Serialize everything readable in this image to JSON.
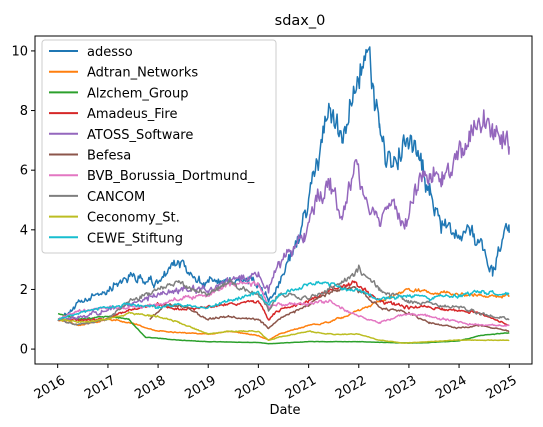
{
  "chart_data": {
    "type": "line",
    "title": "sdax_0",
    "xlabel": "Date",
    "ylabel": "",
    "xlim": [
      "2015-07-20",
      "2025-06-15"
    ],
    "ylim": [
      -0.5,
      10.5
    ],
    "x_ticks": [
      "2016",
      "2017",
      "2018",
      "2019",
      "2020",
      "2021",
      "2022",
      "2023",
      "2024",
      "2025"
    ],
    "y_ticks": [
      0,
      2,
      4,
      6,
      8,
      10
    ],
    "grid": false,
    "legend_position": "upper-left",
    "series": [
      {
        "name": "adesso",
        "color": "#1f77b4",
        "noise": 0.1,
        "points": [
          [
            "2016-01-04",
            1.0
          ],
          [
            "2016-06-01",
            1.5
          ],
          [
            "2017-01-01",
            2.0
          ],
          [
            "2017-06-01",
            2.5
          ],
          [
            "2017-12-01",
            2.2
          ],
          [
            "2018-06-01",
            2.9
          ],
          [
            "2018-12-01",
            2.2
          ],
          [
            "2019-06-01",
            2.3
          ],
          [
            "2019-12-01",
            2.3
          ],
          [
            "2020-03-15",
            1.6
          ],
          [
            "2020-06-01",
            2.2
          ],
          [
            "2020-11-01",
            3.8
          ],
          [
            "2021-01-01",
            5.0
          ],
          [
            "2021-06-01",
            8.0
          ],
          [
            "2021-09-01",
            7.0
          ],
          [
            "2021-12-01",
            9.0
          ],
          [
            "2022-03-01",
            10.0
          ],
          [
            "2022-06-01",
            7.5
          ],
          [
            "2022-09-01",
            6.0
          ],
          [
            "2022-12-01",
            7.0
          ],
          [
            "2023-03-01",
            6.5
          ],
          [
            "2023-06-01",
            5.2
          ],
          [
            "2023-09-01",
            4.2
          ],
          [
            "2023-12-01",
            3.8
          ],
          [
            "2024-03-01",
            4.2
          ],
          [
            "2024-06-01",
            3.5
          ],
          [
            "2024-09-01",
            2.6
          ],
          [
            "2024-12-01",
            4.0
          ],
          [
            "2024-12-31",
            3.9
          ]
        ]
      },
      {
        "name": "Adtran_Networks",
        "color": "#ff7f0e",
        "noise": 0.04,
        "points": [
          [
            "2016-01-04",
            1.0
          ],
          [
            "2016-06-01",
            0.8
          ],
          [
            "2017-01-01",
            1.0
          ],
          [
            "2017-06-01",
            0.9
          ],
          [
            "2018-01-01",
            0.6
          ],
          [
            "2018-06-01",
            0.55
          ],
          [
            "2019-01-01",
            0.5
          ],
          [
            "2019-06-01",
            0.6
          ],
          [
            "2020-01-01",
            0.45
          ],
          [
            "2020-03-15",
            0.3
          ],
          [
            "2020-06-01",
            0.5
          ],
          [
            "2021-01-01",
            0.8
          ],
          [
            "2021-06-01",
            0.9
          ],
          [
            "2022-01-01",
            1.3
          ],
          [
            "2022-06-01",
            1.6
          ],
          [
            "2023-01-01",
            2.0
          ],
          [
            "2023-06-01",
            1.9
          ],
          [
            "2024-01-01",
            1.85
          ],
          [
            "2024-06-01",
            1.8
          ],
          [
            "2024-12-31",
            1.8
          ]
        ]
      },
      {
        "name": "Alzchem_Group",
        "color": "#2ca02c",
        "noise": 0.03,
        "points": [
          [
            "2016-01-04",
            1.2
          ],
          [
            "2016-06-01",
            1.0
          ],
          [
            "2017-01-01",
            1.1
          ],
          [
            "2017-06-01",
            1.0
          ],
          [
            "2017-10-01",
            0.4
          ],
          [
            "2018-06-01",
            0.3
          ],
          [
            "2019-01-01",
            0.25
          ],
          [
            "2020-01-01",
            0.22
          ],
          [
            "2020-03-15",
            0.18
          ],
          [
            "2021-01-01",
            0.25
          ],
          [
            "2022-01-01",
            0.25
          ],
          [
            "2023-01-01",
            0.2
          ],
          [
            "2023-06-01",
            0.22
          ],
          [
            "2024-01-01",
            0.28
          ],
          [
            "2024-06-01",
            0.45
          ],
          [
            "2024-12-31",
            0.55
          ]
        ]
      },
      {
        "name": "Amadeus_Fire",
        "color": "#d62728",
        "noise": 0.05,
        "points": [
          [
            "2016-01-04",
            1.0
          ],
          [
            "2017-01-01",
            1.0
          ],
          [
            "2017-06-01",
            1.3
          ],
          [
            "2018-01-01",
            1.5
          ],
          [
            "2018-06-01",
            1.3
          ],
          [
            "2019-01-01",
            1.4
          ],
          [
            "2019-06-01",
            1.5
          ],
          [
            "2020-01-01",
            1.6
          ],
          [
            "2020-03-15",
            1.0
          ],
          [
            "2020-06-01",
            1.3
          ],
          [
            "2021-01-01",
            1.6
          ],
          [
            "2021-06-01",
            2.0
          ],
          [
            "2021-12-01",
            2.2
          ],
          [
            "2022-06-01",
            1.6
          ],
          [
            "2023-01-01",
            1.4
          ],
          [
            "2023-06-01",
            1.4
          ],
          [
            "2024-01-01",
            1.3
          ],
          [
            "2024-06-01",
            1.2
          ],
          [
            "2024-12-31",
            0.8
          ]
        ]
      },
      {
        "name": "ATOSS_Software",
        "color": "#9467bd",
        "noise": 0.09,
        "points": [
          [
            "2016-01-04",
            1.0
          ],
          [
            "2016-06-01",
            1.1
          ],
          [
            "2017-01-01",
            1.3
          ],
          [
            "2017-06-01",
            1.5
          ],
          [
            "2018-01-01",
            1.8
          ],
          [
            "2018-06-01",
            2.0
          ],
          [
            "2019-01-01",
            2.0
          ],
          [
            "2019-06-01",
            2.3
          ],
          [
            "2020-01-01",
            2.5
          ],
          [
            "2020-03-15",
            2.0
          ],
          [
            "2020-06-01",
            2.9
          ],
          [
            "2020-12-01",
            3.8
          ],
          [
            "2021-03-01",
            5.0
          ],
          [
            "2021-06-01",
            5.5
          ],
          [
            "2021-09-01",
            4.5
          ],
          [
            "2021-12-01",
            6.0
          ],
          [
            "2022-03-01",
            4.8
          ],
          [
            "2022-06-01",
            4.2
          ],
          [
            "2022-09-01",
            5.0
          ],
          [
            "2022-12-01",
            4.0
          ],
          [
            "2023-03-01",
            5.5
          ],
          [
            "2023-06-01",
            6.0
          ],
          [
            "2023-09-01",
            5.8
          ],
          [
            "2023-12-01",
            6.5
          ],
          [
            "2024-03-01",
            7.0
          ],
          [
            "2024-06-01",
            8.0
          ],
          [
            "2024-09-01",
            7.5
          ],
          [
            "2024-12-31",
            6.8
          ]
        ]
      },
      {
        "name": "Befesa",
        "color": "#8c564b",
        "noise": 0.05,
        "points": [
          [
            "2017-11-01",
            1.0
          ],
          [
            "2018-03-01",
            1.5
          ],
          [
            "2018-06-01",
            1.5
          ],
          [
            "2019-01-01",
            1.0
          ],
          [
            "2019-06-01",
            1.1
          ],
          [
            "2020-01-01",
            1.0
          ],
          [
            "2020-03-15",
            0.7
          ],
          [
            "2020-06-01",
            1.0
          ],
          [
            "2021-01-01",
            1.5
          ],
          [
            "2021-06-01",
            1.9
          ],
          [
            "2021-12-01",
            2.1
          ],
          [
            "2022-06-01",
            1.4
          ],
          [
            "2023-01-01",
            1.2
          ],
          [
            "2023-06-01",
            0.9
          ],
          [
            "2024-01-01",
            0.7
          ],
          [
            "2024-06-01",
            0.8
          ],
          [
            "2024-12-31",
            0.6
          ]
        ]
      },
      {
        "name": "BVB_Borussia_Dortmund_",
        "color": "#e377c2",
        "noise": 0.05,
        "points": [
          [
            "2016-01-04",
            1.0
          ],
          [
            "2016-06-01",
            1.3
          ],
          [
            "2017-01-01",
            1.4
          ],
          [
            "2017-06-01",
            1.4
          ],
          [
            "2018-01-01",
            1.5
          ],
          [
            "2018-06-01",
            1.7
          ],
          [
            "2019-01-01",
            1.8
          ],
          [
            "2019-06-01",
            2.2
          ],
          [
            "2020-01-01",
            2.2
          ],
          [
            "2020-03-15",
            1.4
          ],
          [
            "2020-06-01",
            1.5
          ],
          [
            "2021-01-01",
            1.5
          ],
          [
            "2021-06-01",
            1.6
          ],
          [
            "2022-01-01",
            1.1
          ],
          [
            "2022-06-01",
            0.9
          ],
          [
            "2023-01-01",
            1.2
          ],
          [
            "2023-06-01",
            1.1
          ],
          [
            "2024-01-01",
            0.9
          ],
          [
            "2024-06-01",
            0.8
          ],
          [
            "2024-12-31",
            0.8
          ]
        ]
      },
      {
        "name": "CANCOM",
        "color": "#7f7f7f",
        "noise": 0.06,
        "points": [
          [
            "2016-01-04",
            1.0
          ],
          [
            "2016-06-01",
            0.8
          ],
          [
            "2017-01-01",
            1.0
          ],
          [
            "2017-06-01",
            1.6
          ],
          [
            "2018-01-01",
            2.0
          ],
          [
            "2018-06-01",
            2.2
          ],
          [
            "2019-01-01",
            1.8
          ],
          [
            "2019-06-01",
            2.3
          ],
          [
            "2020-01-01",
            1.8
          ],
          [
            "2020-03-15",
            1.3
          ],
          [
            "2020-06-01",
            1.8
          ],
          [
            "2021-01-01",
            1.7
          ],
          [
            "2021-06-01",
            2.0
          ],
          [
            "2021-12-01",
            2.5
          ],
          [
            "2022-01-01",
            2.7
          ],
          [
            "2022-06-01",
            2.0
          ],
          [
            "2023-01-01",
            1.6
          ],
          [
            "2023-06-01",
            1.5
          ],
          [
            "2024-01-01",
            1.4
          ],
          [
            "2024-06-01",
            1.2
          ],
          [
            "2024-12-31",
            1.0
          ]
        ]
      },
      {
        "name": "Ceconomy_St.",
        "color": "#bcbd22",
        "noise": 0.04,
        "points": [
          [
            "2016-01-04",
            1.0
          ],
          [
            "2016-06-01",
            0.9
          ],
          [
            "2017-01-01",
            1.0
          ],
          [
            "2017-06-01",
            1.2
          ],
          [
            "2018-01-01",
            1.1
          ],
          [
            "2018-06-01",
            0.9
          ],
          [
            "2019-01-01",
            0.5
          ],
          [
            "2019-06-01",
            0.6
          ],
          [
            "2020-01-01",
            0.6
          ],
          [
            "2020-03-15",
            0.3
          ],
          [
            "2020-06-01",
            0.4
          ],
          [
            "2021-01-01",
            0.6
          ],
          [
            "2021-06-01",
            0.5
          ],
          [
            "2022-01-01",
            0.5
          ],
          [
            "2022-06-01",
            0.3
          ],
          [
            "2022-12-01",
            0.2
          ],
          [
            "2023-06-01",
            0.25
          ],
          [
            "2024-01-01",
            0.3
          ],
          [
            "2024-06-01",
            0.3
          ],
          [
            "2024-12-31",
            0.3
          ]
        ]
      },
      {
        "name": "CEWE_Stiftung",
        "color": "#17becf",
        "noise": 0.05,
        "points": [
          [
            "2016-01-04",
            1.0
          ],
          [
            "2016-06-01",
            1.2
          ],
          [
            "2017-01-01",
            1.4
          ],
          [
            "2017-06-01",
            1.5
          ],
          [
            "2018-01-01",
            1.4
          ],
          [
            "2018-06-01",
            1.5
          ],
          [
            "2019-01-01",
            1.4
          ],
          [
            "2019-06-01",
            1.6
          ],
          [
            "2020-01-01",
            1.9
          ],
          [
            "2020-03-15",
            1.5
          ],
          [
            "2020-06-01",
            1.8
          ],
          [
            "2021-01-01",
            2.2
          ],
          [
            "2021-06-01",
            2.2
          ],
          [
            "2022-01-01",
            1.9
          ],
          [
            "2022-06-01",
            1.7
          ],
          [
            "2023-01-01",
            1.8
          ],
          [
            "2023-06-01",
            1.7
          ],
          [
            "2024-01-01",
            1.8
          ],
          [
            "2024-06-01",
            1.9
          ],
          [
            "2024-12-31",
            1.85
          ]
        ]
      }
    ]
  }
}
